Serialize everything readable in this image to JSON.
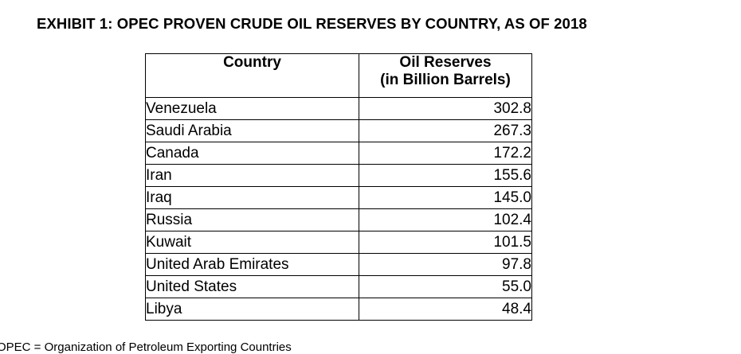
{
  "title": "EXHIBIT 1: OPEC PROVEN CRUDE OIL RESERVES BY COUNTRY, AS OF 2018",
  "table": {
    "headers": {
      "country": "Country",
      "reserves_line1": "Oil Reserves",
      "reserves_line2": "(in Billion Barrels)"
    },
    "rows": [
      {
        "country": "Venezuela",
        "reserves": "302.8"
      },
      {
        "country": "Saudi Arabia",
        "reserves": "267.3"
      },
      {
        "country": "Canada",
        "reserves": "172.2"
      },
      {
        "country": "Iran",
        "reserves": "155.6"
      },
      {
        "country": "Iraq",
        "reserves": "145.0"
      },
      {
        "country": "Russia",
        "reserves": "102.4"
      },
      {
        "country": "Kuwait",
        "reserves": "101.5"
      },
      {
        "country": "United Arab Emirates",
        "reserves": "97.8"
      },
      {
        "country": "United States",
        "reserves": "55.0"
      },
      {
        "country": "Libya",
        "reserves": "48.4"
      }
    ]
  },
  "footnote": "OPEC = Organization of Petroleum Exporting Countries"
}
